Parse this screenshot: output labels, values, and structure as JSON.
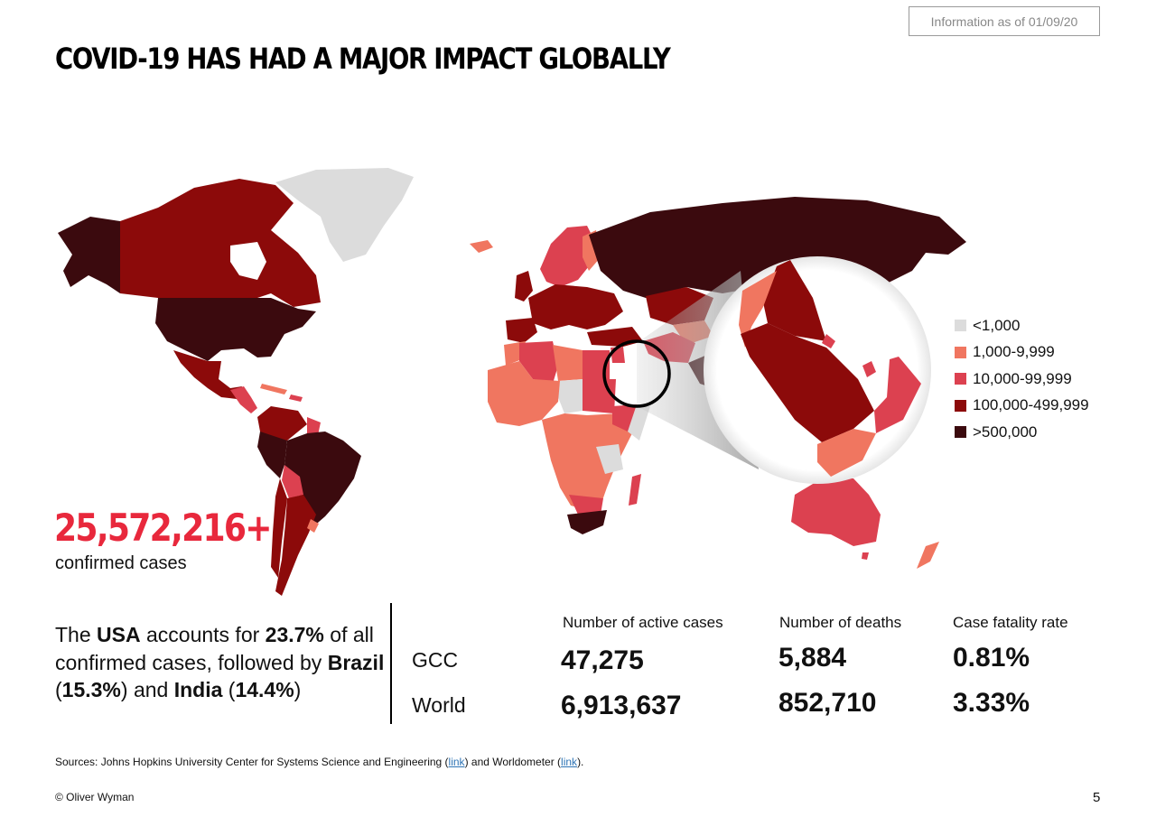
{
  "header": {
    "info_badge": "Information as of 01/09/20",
    "title": "COVID-19 HAS HAD A MAJOR IMPACT GLOBALLY"
  },
  "map": {
    "colors": {
      "lt_1000": "#dcdcdc",
      "1000_9999": "#f07660",
      "10000_99999": "#dc4150",
      "100000_499999": "#8c0a0a",
      "gt_500000": "#3b0a0e"
    },
    "zoom_region": "GCC"
  },
  "legend": {
    "items": [
      {
        "label": "<1,000",
        "color": "#dcdcdc"
      },
      {
        "label": "1,000-9,999",
        "color": "#f07660"
      },
      {
        "label": "10,000-99,999",
        "color": "#dc4150"
      },
      {
        "label": "100,000-499,999",
        "color": "#8c0a0a"
      },
      {
        "label": ">500,000",
        "color": "#3b0a0e"
      }
    ]
  },
  "confirmed": {
    "number": "25,572,216+",
    "label": "confirmed cases"
  },
  "summary": {
    "p1": "The ",
    "usa": "USA",
    "p2": " accounts for ",
    "usa_pct": "23.7%",
    "p3": " of all confirmed cases, followed by ",
    "brazil": "Brazil",
    "p4": " (",
    "brazil_pct": "15.3%",
    "p5": ") and ",
    "india": "India",
    "p6": " (",
    "india_pct": "14.4%",
    "p7": ")"
  },
  "stats": {
    "headers": [
      "Number of active cases",
      "Number of deaths",
      "Case fatality rate"
    ],
    "rows": [
      {
        "label": "GCC",
        "active": "47,275",
        "deaths": "5,884",
        "cfr": "0.81%"
      },
      {
        "label": "World",
        "active": "6,913,637",
        "deaths": "852,710",
        "cfr": "3.33%"
      }
    ]
  },
  "footer": {
    "sources_prefix": "Sources: Johns Hopkins University Center for Systems Science and Engineering (",
    "link1": "link",
    "sources_mid": ") and Worldometer (",
    "link2": "link",
    "sources_suffix": ").",
    "copyright": "© Oliver Wyman",
    "page_number": "5"
  }
}
